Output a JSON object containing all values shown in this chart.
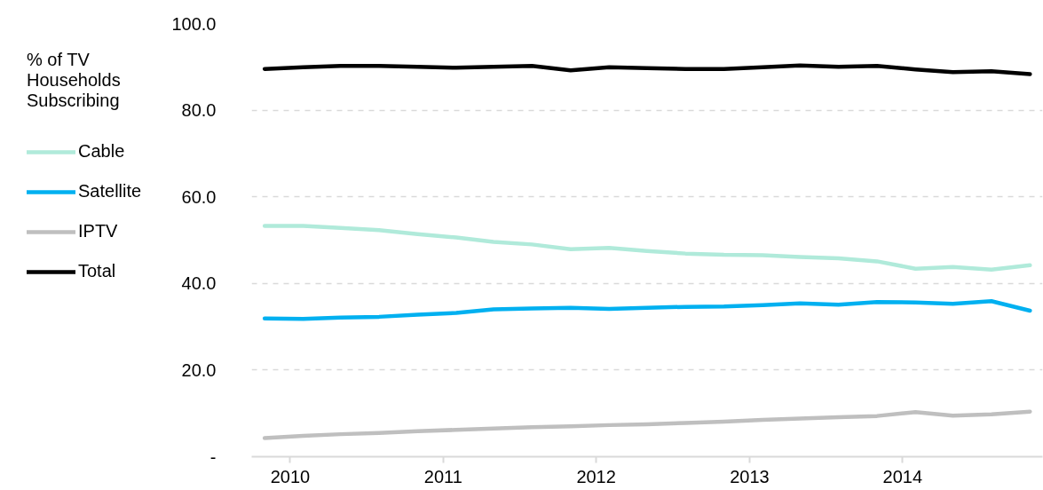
{
  "chart_data": {
    "type": "line",
    "annotations": [
      "% of TV Households Subscribing"
    ],
    "x": [
      "2009-11",
      "2010-02",
      "2010-05",
      "2010-08",
      "2010-11",
      "2011-02",
      "2011-05",
      "2011-08",
      "2011-11",
      "2012-02",
      "2012-05",
      "2012-08",
      "2012-11",
      "2013-02",
      "2013-05",
      "2013-08",
      "2013-11",
      "2014-02",
      "2014-05",
      "2014-08",
      "2014-11"
    ],
    "xlim": [
      "2009-10",
      "2014-12"
    ],
    "xticks": [
      "2010",
      "2011",
      "2012",
      "2013",
      "2014"
    ],
    "ylim": [
      0,
      100
    ],
    "yticks": [
      {
        "value": 0,
        "label": "-"
      },
      {
        "value": 20,
        "label": "20.0"
      },
      {
        "value": 40,
        "label": "40.0"
      },
      {
        "value": 60,
        "label": "60.0"
      },
      {
        "value": 80,
        "label": "80.0"
      },
      {
        "value": 100,
        "label": "100.0"
      }
    ],
    "grid": "y",
    "legend": "left",
    "line_style": "solid",
    "series": [
      {
        "name": "Cable",
        "color": "#b0eada",
        "values": [
          53.3,
          53.3,
          52.8,
          52.3,
          51.4,
          50.6,
          49.6,
          49.0,
          47.9,
          48.2,
          47.5,
          46.9,
          46.6,
          46.5,
          46.1,
          45.8,
          45.1,
          43.4,
          43.8,
          43.2,
          44.2
        ]
      },
      {
        "name": "Satellite",
        "color": "#00b0f0",
        "values": [
          31.9,
          31.8,
          32.1,
          32.3,
          32.8,
          33.2,
          34.0,
          34.2,
          34.4,
          34.1,
          34.4,
          34.6,
          34.7,
          35.0,
          35.4,
          35.1,
          35.7,
          35.6,
          35.3,
          35.9,
          33.7
        ]
      },
      {
        "name": "IPTV",
        "color": "#bfbfbf",
        "values": [
          4.3,
          4.8,
          5.2,
          5.5,
          5.9,
          6.2,
          6.5,
          6.8,
          7.0,
          7.3,
          7.5,
          7.8,
          8.1,
          8.5,
          8.8,
          9.1,
          9.4,
          10.3,
          9.5,
          9.8,
          10.4
        ]
      },
      {
        "name": "Total",
        "color": "#000000",
        "values": [
          89.5,
          89.9,
          90.2,
          90.2,
          90.0,
          89.8,
          90.0,
          90.2,
          89.2,
          89.9,
          89.7,
          89.5,
          89.5,
          89.9,
          90.3,
          90.0,
          90.2,
          89.4,
          88.8,
          89.0,
          88.3
        ]
      }
    ]
  }
}
